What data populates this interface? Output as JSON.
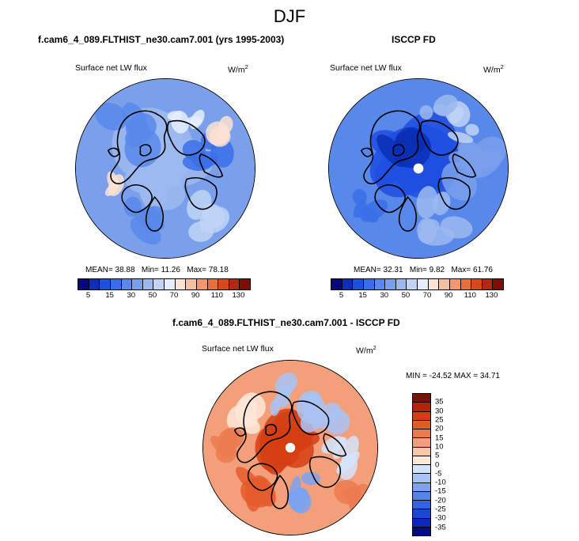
{
  "title": "DJF",
  "panels": {
    "model": {
      "title": "f.cam6_4_089.FLTHIST_ne30.cam7.001 (yrs 1995-2003)",
      "field": "Surface net LW flux",
      "units_base": "W/m",
      "units_exp": "2",
      "mean_label": "MEAN=",
      "mean": "38.88",
      "min_label": "Min=",
      "min": "11.26",
      "max_label": "Max=",
      "max": "78.18"
    },
    "obs": {
      "title": "ISCCP FD",
      "field": "Surface net LW flux",
      "units_base": "W/m",
      "units_exp": "2",
      "mean_label": "MEAN=",
      "mean": "32.31",
      "min_label": "Min=",
      "min": "9.82",
      "max_label": "Max=",
      "max": "61.76"
    },
    "diff": {
      "title": "f.cam6_4_089.FLTHIST_ne30.cam7.001 - ISCCP FD",
      "field": "Surface net LW flux",
      "units_base": "W/m",
      "units_exp": "2",
      "minmax": "MIN = -24.52  MAX =  34.71"
    }
  },
  "chart_data": [
    {
      "type": "heatmap",
      "projection": "north polar stereographic",
      "title": "f.cam6_4_089.FLTHIST_ne30.cam7.001 (yrs 1995-2003)",
      "variable": "Surface net LW flux",
      "units": "W/m2",
      "stats": {
        "mean": 38.88,
        "min": 11.26,
        "max": 78.18
      },
      "colorbar": {
        "orientation": "horizontal",
        "levels": [
          5,
          10,
          15,
          20,
          30,
          40,
          50,
          60,
          70,
          80,
          90,
          100,
          110,
          120,
          130
        ],
        "tick_labels": [
          "5",
          "15",
          "30",
          "50",
          "70",
          "90",
          "110",
          "130"
        ],
        "colors": [
          "#08087a",
          "#0b2fb5",
          "#1e4fe0",
          "#3a6ee8",
          "#5888ea",
          "#7aa0ec",
          "#9cbaf0",
          "#c0d4f5",
          "#e6eefb",
          "#fbe2d2",
          "#f6c0a2",
          "#f0996f",
          "#e8703f",
          "#d64a1d",
          "#b02a0e",
          "#7a0f05"
        ]
      }
    },
    {
      "type": "heatmap",
      "projection": "north polar stereographic",
      "title": "ISCCP FD",
      "variable": "Surface net LW flux",
      "units": "W/m2",
      "stats": {
        "mean": 32.31,
        "min": 9.82,
        "max": 61.76
      },
      "colorbar": {
        "orientation": "horizontal",
        "levels": [
          5,
          10,
          15,
          20,
          30,
          40,
          50,
          60,
          70,
          80,
          90,
          100,
          110,
          120,
          130
        ],
        "tick_labels": [
          "5",
          "15",
          "30",
          "50",
          "70",
          "90",
          "110",
          "130"
        ],
        "colors": [
          "#08087a",
          "#0b2fb5",
          "#1e4fe0",
          "#3a6ee8",
          "#5888ea",
          "#7aa0ec",
          "#9cbaf0",
          "#c0d4f5",
          "#e6eefb",
          "#fbe2d2",
          "#f6c0a2",
          "#f0996f",
          "#e8703f",
          "#d64a1d",
          "#b02a0e",
          "#7a0f05"
        ]
      }
    },
    {
      "type": "heatmap",
      "projection": "north polar stereographic",
      "title": "f.cam6_4_089.FLTHIST_ne30.cam7.001 - ISCCP FD",
      "variable": "Surface net LW flux",
      "units": "W/m2",
      "stats": {
        "min": -24.52,
        "max": 34.71
      },
      "colorbar": {
        "orientation": "vertical",
        "levels": [
          -35,
          -30,
          -25,
          -20,
          -15,
          -10,
          -5,
          0,
          5,
          10,
          15,
          20,
          25,
          30,
          35
        ],
        "tick_labels": [
          "35",
          "30",
          "25",
          "20",
          "15",
          "10",
          "5",
          "0",
          "-5",
          "-10",
          "-15",
          "-20",
          "-25",
          "-30",
          "-35"
        ],
        "colors": [
          "#0a0a80",
          "#1028b8",
          "#1d45d8",
          "#3563e5",
          "#5583ea",
          "#7ba3f0",
          "#a8c3f5",
          "#d5e3fa",
          "#fde8d8",
          "#f9c7a8",
          "#f3a07a",
          "#ec7a50",
          "#e55a2c",
          "#d43e12",
          "#b3240a",
          "#7c1005"
        ]
      }
    }
  ]
}
